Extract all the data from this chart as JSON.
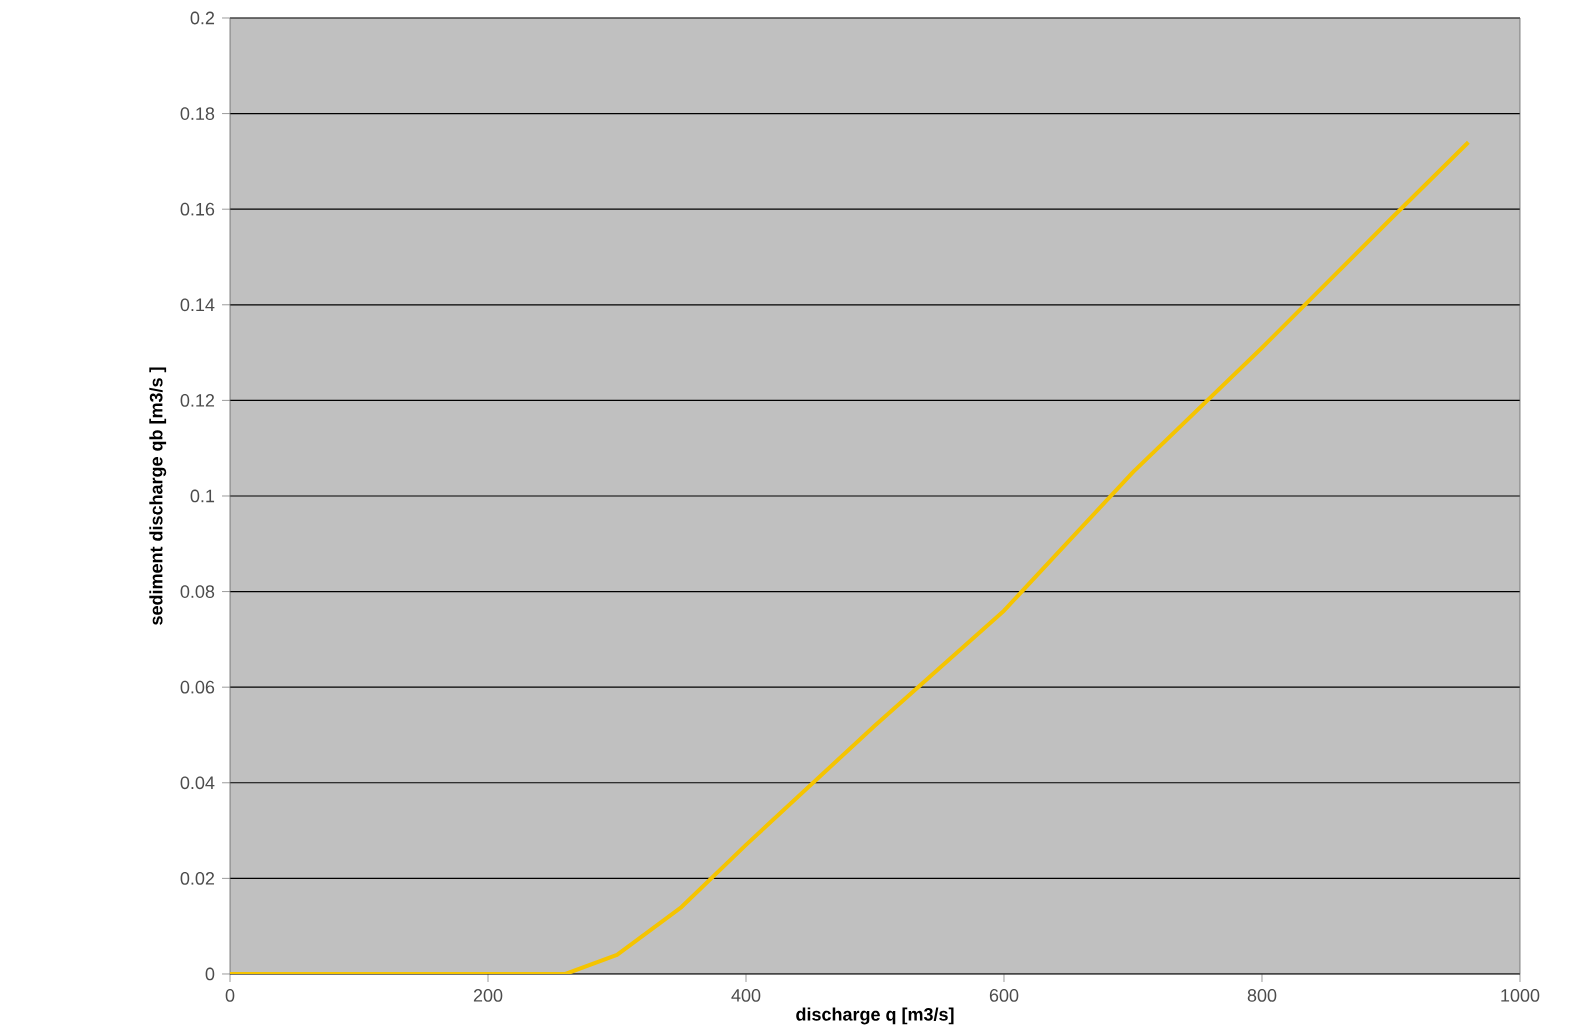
{
  "chart_data": {
    "type": "line",
    "xlabel": "discharge q [m3/s]",
    "ylabel": "sediment discharge qb [m3/s ]",
    "x": [
      0,
      260,
      300,
      350,
      400,
      500,
      600,
      700,
      800,
      900,
      960
    ],
    "series": [
      {
        "color": "#f5c400",
        "values": [
          0,
          0,
          0.004,
          0.014,
          0.027,
          0.052,
          0.076,
          0.105,
          0.131,
          0.158,
          0.174
        ]
      }
    ],
    "xlim": [
      0,
      1000
    ],
    "ylim": [
      0,
      0.2
    ],
    "xticks": [
      0,
      200,
      400,
      600,
      800,
      1000
    ],
    "yticks": [
      0,
      0.02,
      0.04,
      0.06,
      0.08,
      0.1,
      0.12,
      0.14,
      0.16,
      0.18,
      0.2
    ],
    "grid": "y",
    "marker": "none",
    "line_style": "solid"
  }
}
